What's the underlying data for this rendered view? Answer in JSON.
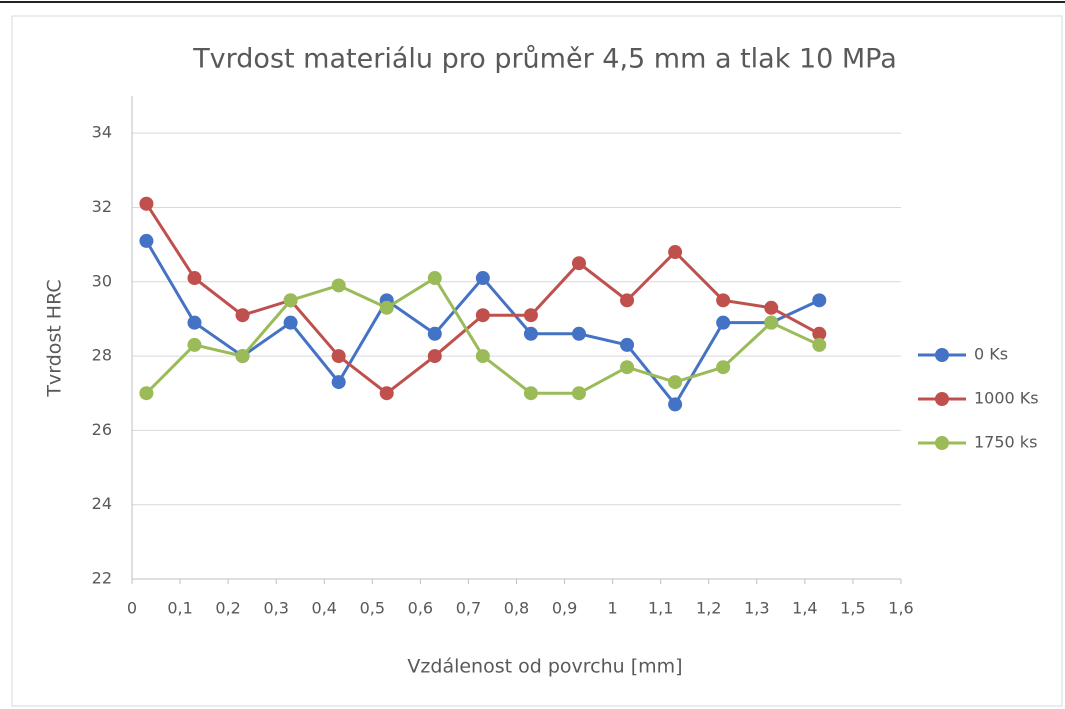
{
  "chart_data": {
    "type": "line",
    "title": "Tvrdost materiálu pro průměr 4,5 mm a tlak 10 MPa",
    "xlabel": "Vzdálenost od povrchu [mm]",
    "ylabel": "Tvrdost HRC",
    "x": [
      0.03,
      0.13,
      0.23,
      0.33,
      0.43,
      0.53,
      0.63,
      0.73,
      0.83,
      0.93,
      1.03,
      1.13,
      1.23,
      1.33,
      1.43
    ],
    "series": [
      {
        "name": "0 Ks",
        "color": "#4472c4",
        "values": [
          31.1,
          28.9,
          28.0,
          28.9,
          27.3,
          29.5,
          28.6,
          30.1,
          28.6,
          28.6,
          28.3,
          26.7,
          28.9,
          28.9,
          29.5
        ]
      },
      {
        "name": "1000 Ks",
        "color": "#c0504d",
        "values": [
          32.1,
          30.1,
          29.1,
          29.5,
          28.0,
          27.0,
          28.0,
          29.1,
          29.1,
          30.5,
          29.5,
          30.8,
          29.5,
          29.3,
          28.6
        ]
      },
      {
        "name": "1750 ks",
        "color": "#9bbb59",
        "values": [
          27.0,
          28.3,
          28.0,
          29.5,
          29.9,
          29.3,
          30.1,
          28.0,
          27.0,
          27.0,
          27.7,
          27.3,
          27.7,
          28.9,
          28.3
        ]
      }
    ],
    "xlim": [
      0,
      1.6
    ],
    "xticks": [
      0,
      {
        "value": 0.1,
        "label": "0,1"
      },
      {
        "value": 0.2,
        "label": "0,2"
      },
      {
        "value": 0.3,
        "label": "0,3"
      },
      {
        "value": 0.4,
        "label": "0,4"
      },
      {
        "value": 0.5,
        "label": "0,5"
      },
      {
        "value": 0.6,
        "label": "0,6"
      },
      {
        "value": 0.7,
        "label": "0,7"
      },
      {
        "value": 0.8,
        "label": "0,8"
      },
      {
        "value": 0.9,
        "label": "0,9"
      },
      1,
      {
        "value": 1.1,
        "label": "1,1"
      },
      {
        "value": 1.2,
        "label": "1,2"
      },
      {
        "value": 1.3,
        "label": "1,3"
      },
      {
        "value": 1.4,
        "label": "1,4"
      },
      {
        "value": 1.5,
        "label": "1,5"
      },
      {
        "value": 1.6,
        "label": "1,6"
      }
    ],
    "ylim": [
      22,
      35
    ],
    "yticks": [
      22,
      24,
      26,
      28,
      30,
      32,
      34
    ],
    "grid": true,
    "legend": "right"
  }
}
